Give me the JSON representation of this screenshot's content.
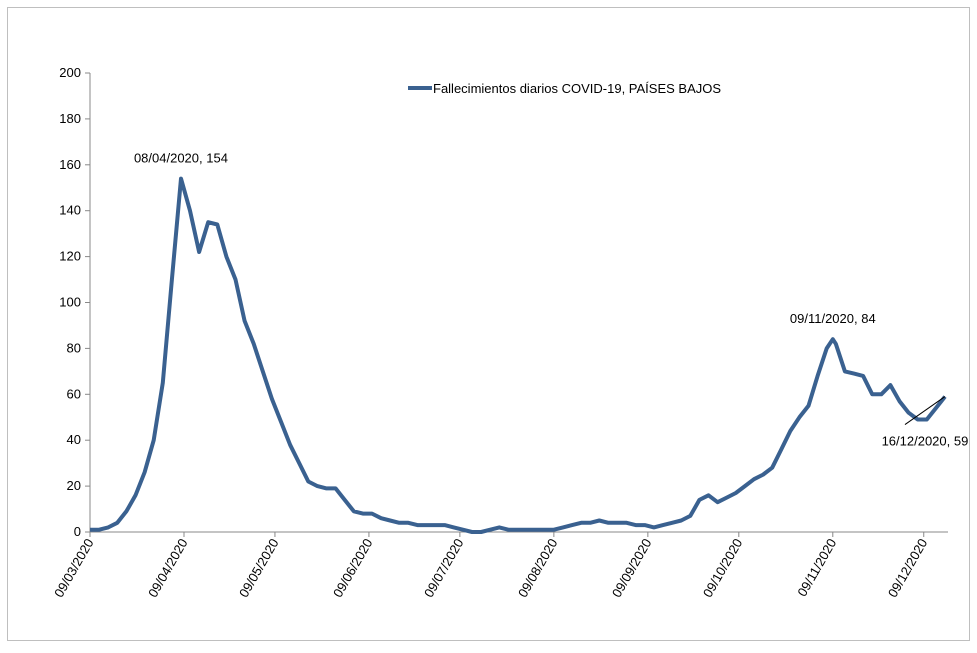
{
  "chart_data": {
    "type": "line",
    "x": [
      "09/03/2020",
      "12/03/2020",
      "15/03/2020",
      "18/03/2020",
      "21/03/2020",
      "24/03/2020",
      "27/03/2020",
      "30/03/2020",
      "02/04/2020",
      "05/04/2020",
      "08/04/2020",
      "11/04/2020",
      "14/04/2020",
      "17/04/2020",
      "20/04/2020",
      "23/04/2020",
      "26/04/2020",
      "29/04/2020",
      "02/05/2020",
      "05/05/2020",
      "08/05/2020",
      "11/05/2020",
      "14/05/2020",
      "17/05/2020",
      "20/05/2020",
      "23/05/2020",
      "26/05/2020",
      "29/05/2020",
      "01/06/2020",
      "04/06/2020",
      "07/06/2020",
      "10/06/2020",
      "13/06/2020",
      "16/06/2020",
      "19/06/2020",
      "22/06/2020",
      "25/06/2020",
      "28/06/2020",
      "01/07/2020",
      "04/07/2020",
      "07/07/2020",
      "10/07/2020",
      "13/07/2020",
      "16/07/2020",
      "19/07/2020",
      "22/07/2020",
      "25/07/2020",
      "28/07/2020",
      "31/07/2020",
      "03/08/2020",
      "06/08/2020",
      "09/08/2020",
      "12/08/2020",
      "15/08/2020",
      "18/08/2020",
      "21/08/2020",
      "24/08/2020",
      "27/08/2020",
      "30/08/2020",
      "02/09/2020",
      "05/09/2020",
      "08/09/2020",
      "11/09/2020",
      "14/09/2020",
      "17/09/2020",
      "20/09/2020",
      "23/09/2020",
      "26/09/2020",
      "29/09/2020",
      "02/10/2020",
      "05/10/2020",
      "08/10/2020",
      "11/10/2020",
      "14/10/2020",
      "17/10/2020",
      "20/10/2020",
      "23/10/2020",
      "26/10/2020",
      "29/10/2020",
      "01/11/2020",
      "04/11/2020",
      "07/11/2020",
      "09/11/2020",
      "10/11/2020",
      "13/11/2020",
      "16/11/2020",
      "19/11/2020",
      "22/11/2020",
      "25/11/2020",
      "28/11/2020",
      "01/12/2020",
      "04/12/2020",
      "07/12/2020",
      "10/12/2020",
      "13/12/2020",
      "16/12/2020"
    ],
    "series": [
      {
        "name": "Fallecimientos diarios COVID-19, PAÍSES BAJOS",
        "color": "#3a6190",
        "values": [
          1,
          1,
          2,
          4,
          9,
          16,
          26,
          40,
          65,
          110,
          154,
          140,
          122,
          135,
          134,
          120,
          110,
          92,
          82,
          70,
          58,
          48,
          38,
          30,
          22,
          20,
          19,
          19,
          14,
          9,
          8,
          8,
          6,
          5,
          4,
          4,
          3,
          3,
          3,
          3,
          2,
          1,
          0,
          0,
          1,
          2,
          1,
          1,
          1,
          1,
          1,
          1,
          2,
          3,
          4,
          4,
          5,
          4,
          4,
          4,
          3,
          3,
          2,
          3,
          4,
          5,
          7,
          14,
          16,
          13,
          15,
          17,
          20,
          23,
          25,
          28,
          36,
          44,
          50,
          55,
          68,
          80,
          84,
          82,
          70,
          69,
          68,
          60,
          60,
          64,
          57,
          52,
          49,
          49,
          54,
          59
        ]
      }
    ],
    "xlim": [
      "09/03/2020",
      "17/12/2020"
    ],
    "xticks": [
      "09/03/2020",
      "09/04/2020",
      "09/05/2020",
      "09/06/2020",
      "09/07/2020",
      "09/08/2020",
      "09/09/2020",
      "09/10/2020",
      "09/11/2020",
      "09/12/2020"
    ],
    "ylim": [
      0,
      200
    ],
    "yticks": [
      0,
      20,
      40,
      60,
      80,
      100,
      120,
      140,
      160,
      180,
      200
    ],
    "annotations": [
      {
        "label": "08/04/2020, 154",
        "x": "08/04/2020"
      },
      {
        "label": "09/11/2020, 84",
        "x": "09/11/2020"
      },
      {
        "label": "16/12/2020, 59",
        "x": "16/12/2020"
      }
    ]
  }
}
